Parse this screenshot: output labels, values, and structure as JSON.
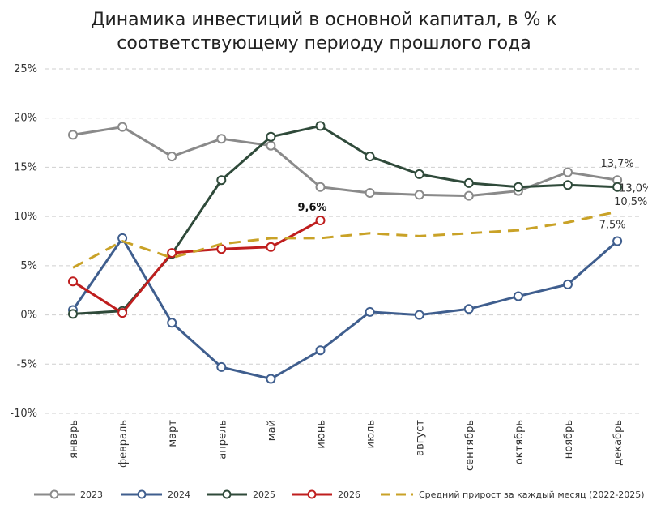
{
  "chart_data": {
    "type": "line",
    "title_line1": "Динамика инвестиций в основной капитал, в % к",
    "title_line2": "соответствующему периоду прошлого года",
    "categories": [
      "январь",
      "февраль",
      "март",
      "апрель",
      "май",
      "июнь",
      "июль",
      "август",
      "сентябрь",
      "октябрь",
      "ноябрь",
      "декабрь"
    ],
    "ylim": [
      -10,
      25
    ],
    "yticks": [
      -10,
      -5,
      0,
      5,
      10,
      15,
      20,
      25
    ],
    "ytick_labels": [
      "-10%",
      "-5%",
      "0%",
      "5%",
      "10%",
      "15%",
      "20%",
      "25%"
    ],
    "grid": true,
    "legend_position": "bottom",
    "series": [
      {
        "name": "2023",
        "color": "#8a8a8a",
        "dashed": false,
        "markers": true,
        "values": [
          18.3,
          19.1,
          16.1,
          17.9,
          17.2,
          13.0,
          12.4,
          12.2,
          12.1,
          12.6,
          14.5,
          13.7
        ]
      },
      {
        "name": "2024",
        "color": "#3f5e8e",
        "dashed": false,
        "markers": true,
        "values": [
          0.5,
          7.8,
          -0.8,
          -5.3,
          -6.5,
          -3.6,
          0.3,
          0.0,
          0.6,
          1.9,
          3.1,
          7.5
        ]
      },
      {
        "name": "2025",
        "color": "#2f4a3a",
        "dashed": false,
        "markers": true,
        "values": [
          0.1,
          0.4,
          6.2,
          13.7,
          18.1,
          19.2,
          16.1,
          14.3,
          13.4,
          13.0,
          13.2,
          13.0
        ]
      },
      {
        "name": "2026",
        "color": "#bf1e1e",
        "dashed": false,
        "markers": true,
        "values": [
          3.4,
          0.2,
          6.3,
          6.7,
          6.9,
          9.6,
          null,
          null,
          null,
          null,
          null,
          null
        ]
      },
      {
        "name": "Средний прирост за каждый месяц (2022-2025)",
        "color": "#c9a227",
        "dashed": true,
        "markers": false,
        "values": [
          4.8,
          7.5,
          5.8,
          7.2,
          7.8,
          7.8,
          8.3,
          8.0,
          8.3,
          8.6,
          9.4,
          10.5
        ]
      }
    ],
    "annotations": [
      {
        "text": "13,7%",
        "series": 0,
        "index": 11,
        "bold": false
      },
      {
        "text": "13,0%",
        "series": 2,
        "index": 11,
        "bold": false
      },
      {
        "text": "10,5%",
        "series": 4,
        "index": 11,
        "bold": false
      },
      {
        "text": "7,5%",
        "series": 1,
        "index": 11,
        "bold": false
      },
      {
        "text": "9,6%",
        "series": 3,
        "index": 5,
        "bold": true
      }
    ]
  }
}
